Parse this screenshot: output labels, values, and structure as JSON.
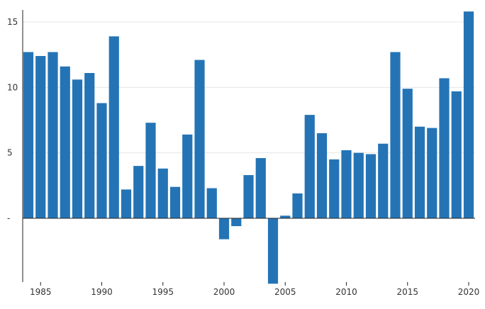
{
  "chart_data": {
    "type": "bar",
    "title": "",
    "xlabel": "",
    "ylabel": "",
    "color": "#2474b5",
    "x": [
      1984,
      1985,
      1986,
      1987,
      1988,
      1989,
      1990,
      1991,
      1992,
      1993,
      1994,
      1995,
      1996,
      1997,
      1998,
      1999,
      2000,
      2001,
      2002,
      2003,
      2004,
      2005,
      2006,
      2007,
      2008,
      2009,
      2010,
      2011,
      2012,
      2013,
      2014,
      2015,
      2016,
      2017,
      2018,
      2019,
      2020
    ],
    "values": [
      12.7,
      12.4,
      12.7,
      11.6,
      10.6,
      11.1,
      8.8,
      13.9,
      2.2,
      4.0,
      7.3,
      3.8,
      2.4,
      6.4,
      12.1,
      2.3,
      -1.6,
      -0.6,
      3.3,
      4.6,
      -5.0,
      0.2,
      1.9,
      7.9,
      6.5,
      4.5,
      5.2,
      5.0,
      4.9,
      5.7,
      12.7,
      9.9,
      7.0,
      6.9,
      10.7,
      9.7,
      15.8
    ],
    "ylim": [
      -5,
      16
    ],
    "yticks": [
      0,
      5,
      10,
      15
    ],
    "ytick_labels": [
      "-",
      "5",
      "10",
      "15"
    ],
    "xticks": [
      1985,
      1990,
      1995,
      2000,
      2005,
      2010,
      2015,
      2020
    ],
    "xtick_labels": [
      "1985",
      "1990",
      "1995",
      "2000",
      "2005",
      "2010",
      "2015",
      "2020"
    ],
    "grid": true,
    "legend": "none"
  }
}
